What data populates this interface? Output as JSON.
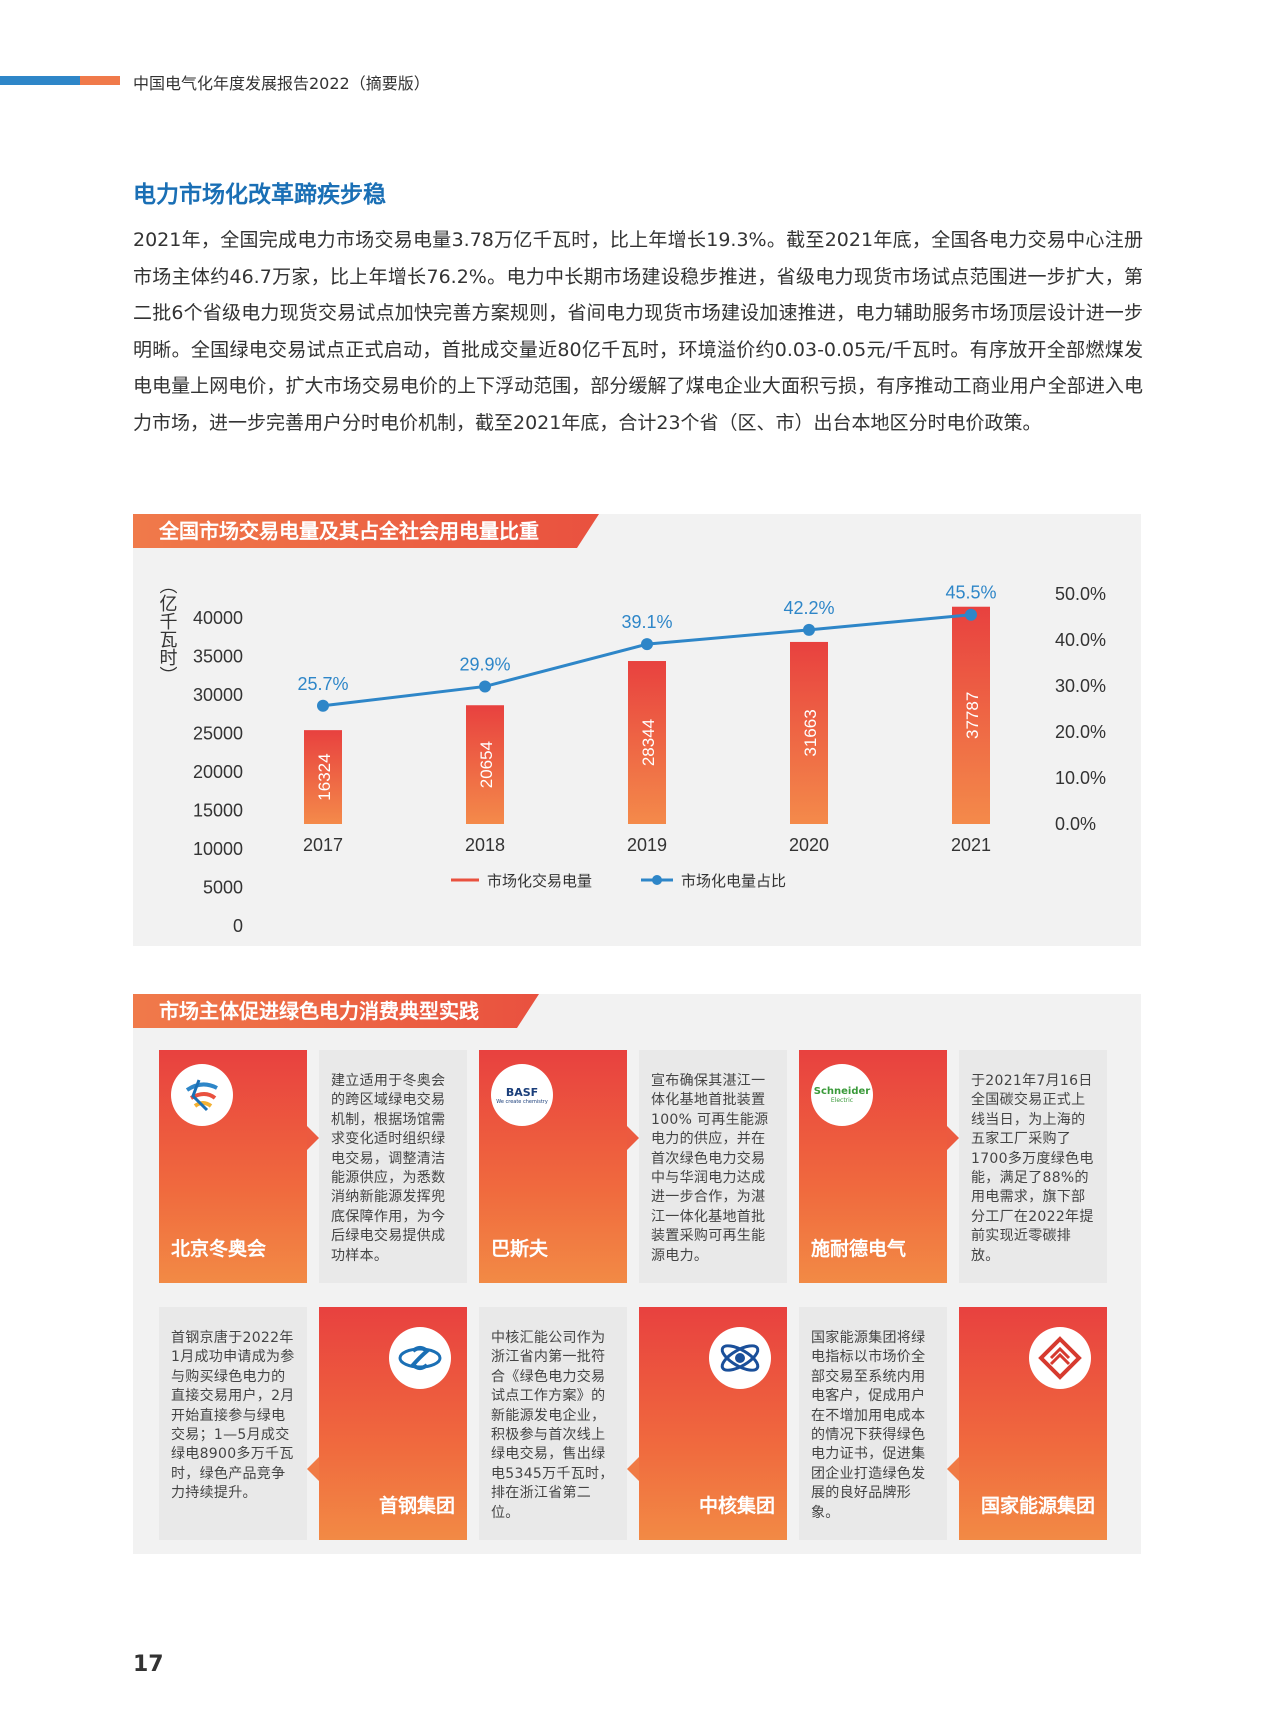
{
  "header": {
    "title": "中国电气化年度发展报告2022（摘要版）"
  },
  "section": {
    "title": "电力市场化改革蹄疾步稳",
    "body": "2021年，全国完成电力市场交易电量3.78万亿千瓦时，比上年增长19.3%。截至2021年底，全国各电力交易中心注册市场主体约46.7万家，比上年增长76.2%。电力中长期市场建设稳步推进，省级电力现货市场试点范围进一步扩大，第二批6个省级电力现货交易试点加快完善方案规则，省间电力现货市场建设加速推进，电力辅助服务市场顶层设计进一步明晰。全国绿电交易试点正式启动，首批成交量近80亿千瓦时，环境溢价约0.03-0.05元/千瓦时。有序放开全部燃煤发电电量上网电价，扩大市场交易电价的上下浮动范围，部分缓解了煤电企业大面积亏损，有序推动工商业用户全部进入电力市场，进一步完善用户分时电价机制，截至2021年底，合计23个省（区、市）出台本地区分时电价政策。"
  },
  "chart_panel": {
    "tag": "全国市场交易电量及其占全社会用电量比重"
  },
  "chart_data": {
    "type": "bar",
    "title": "全国市场交易电量及其占全社会用电量比重",
    "categories": [
      "2017",
      "2018",
      "2019",
      "2020",
      "2021"
    ],
    "series": [
      {
        "name": "市场化交易电量",
        "type": "bar",
        "axis": "left",
        "values": [
          16324,
          20654,
          28344,
          31663,
          37787
        ],
        "color": "#e9513f"
      },
      {
        "name": "市场化电量占比",
        "type": "line",
        "axis": "right",
        "values": [
          25.7,
          29.9,
          39.1,
          42.2,
          45.5
        ],
        "labels": [
          "25.7%",
          "29.9%",
          "39.1%",
          "42.2%",
          "45.5%"
        ],
        "color": "#2e86c8"
      }
    ],
    "ylabel": "（亿千瓦时）",
    "ylim": [
      0,
      40000
    ],
    "yticks": [
      "0",
      "5000",
      "10000",
      "15000",
      "20000",
      "25000",
      "30000",
      "35000",
      "40000"
    ],
    "y2lim": [
      0,
      50
    ],
    "y2ticks": [
      "0.0%",
      "10.0%",
      "20.0%",
      "30.0%",
      "40.0%",
      "50.0%"
    ],
    "legend_position": "bottom"
  },
  "cases_panel": {
    "tag": "市场主体促进绿色电力消费典型实践"
  },
  "cases": [
    {
      "name": "北京冬奥会",
      "text": "建立适用于冬奥会的跨区域绿电交易机制，根据场馆需求变化适时组织绿电交易，调整清洁能源供应，为悉数消纳新能源发挥兜底保障作用，为今后绿电交易提供成功样本。",
      "logo_icon": "winter-olympics-logo"
    },
    {
      "name": "巴斯夫",
      "text": "宣布确保其湛江一体化基地首批装置100% 可再生能源电力的供应，并在首次绿色电力交易中与华润电力达成进一步合作，为湛江一体化基地首批装置采购可再生能源电力。",
      "logo_icon": "basf-logo",
      "logo_text": "BASF",
      "logo_sub": "We create chemistry"
    },
    {
      "name": "施耐德电气",
      "text": "于2021年7月16日全国碳交易正式上线当日，为上海的五家工厂采购了1700多万度绿色电能，满足了88%的用电需求，旗下部分工厂在2022年提前实现近零碳排放。",
      "logo_icon": "schneider-logo",
      "logo_text": "Schneider",
      "logo_sub": "Electric"
    },
    {
      "name": "首钢集团",
      "text": "首钢京唐于2022年1月成功申请成为参与购买绿色电力的直接交易用户，2月开始直接参与绿电交易；1—5月成交绿电8900多万千瓦时，绿色产品竞争力持续提升。",
      "logo_icon": "shougang-logo"
    },
    {
      "name": "中核集团",
      "text": "中核汇能公司作为浙江省内第一批符合《绿色电力交易试点工作方案》的新能源发电企业，积极参与首次线上绿电交易，售出绿电5345万千瓦时，排在浙江省第二位。",
      "logo_icon": "cnnc-logo"
    },
    {
      "name": "国家能源集团",
      "text": "国家能源集团将绿电指标以市场价全部交易至系统内用电客户，促成用户在不增加用电成本的情况下获得绿色电力证书，促进集团企业打造绿色发展的良好品牌形象。",
      "logo_icon": "chn-energy-logo"
    }
  ],
  "page": {
    "number": "17"
  }
}
